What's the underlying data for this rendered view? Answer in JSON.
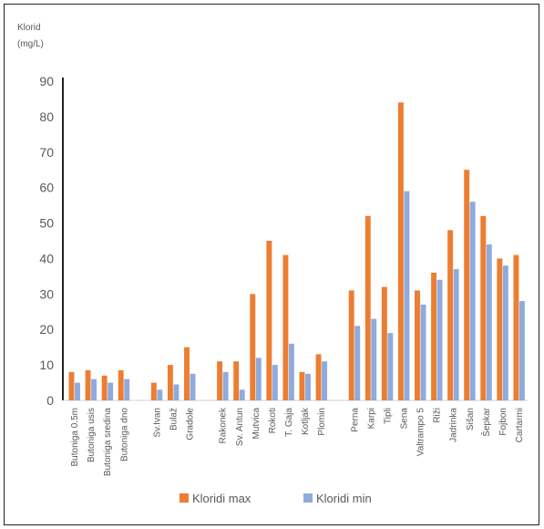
{
  "chart_data": {
    "type": "bar",
    "ylabel_lines": [
      "Klorid",
      "(mg/L)"
    ],
    "ylim": [
      0,
      90
    ],
    "yticks": [
      0,
      10,
      20,
      30,
      40,
      50,
      60,
      70,
      80,
      90
    ],
    "grid": false,
    "legend_position": "bottom",
    "groups": [
      [
        "Butoniga 0.5m",
        "Butoniga usis",
        "Butoniga sredina",
        "Butoniga dno"
      ],
      [
        "Sv.Ivan",
        "Bulaž",
        "Gradole"
      ],
      [
        "Rakonek",
        "Sv. Antun",
        "Mutvica",
        "Rokoti",
        "T. Gaja",
        "Kotljak",
        "Plomin"
      ],
      [
        "Perna",
        "Karpi",
        "Tipli",
        "Sena",
        "Valtrampo 5",
        "Riži",
        "Jadrinka",
        "Sišan",
        "Šepkar",
        "Fojbon",
        "Cartarmi"
      ]
    ],
    "series": [
      {
        "name": "Kloridi max",
        "color": "#ED7D31",
        "values": [
          8,
          8.5,
          7,
          8.5,
          5,
          10,
          15,
          11,
          11,
          30,
          45,
          41,
          8,
          13,
          31,
          52,
          32,
          84,
          31,
          36,
          48,
          65,
          52,
          40,
          41
        ]
      },
      {
        "name": "Kloridi min",
        "color": "#8FAADC",
        "values": [
          5,
          6,
          5,
          6,
          3,
          4.5,
          7.5,
          8,
          3,
          12,
          10,
          16,
          7.5,
          11,
          21,
          23,
          19,
          59,
          27,
          34,
          37,
          56,
          44,
          38,
          28
        ]
      }
    ]
  }
}
